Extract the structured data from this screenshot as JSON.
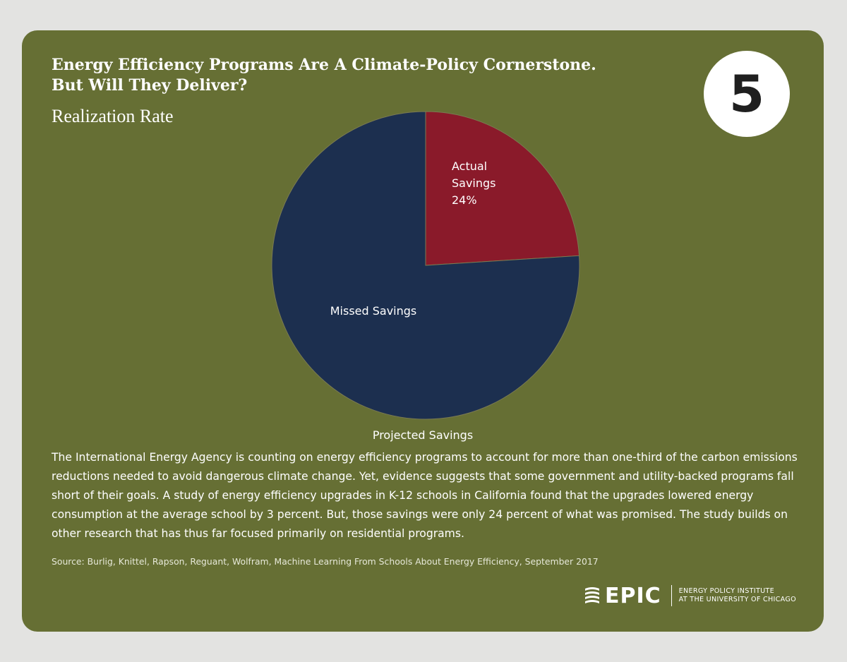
{
  "header": {
    "title_line1": "Energy Efficiency Programs Are A Climate-Policy Cornerstone.",
    "title_line2": "But Will They Deliver?",
    "number_badge": "5"
  },
  "chart_data": {
    "type": "pie",
    "title": "Realization Rate",
    "caption": "Projected Savings",
    "slices": [
      {
        "label_lines": [
          "Actual",
          "Savings",
          "24%"
        ],
        "value": 24,
        "color": "#8a1a2a"
      },
      {
        "label_lines": [
          "Missed Savings"
        ],
        "value": 76,
        "color": "#1c2f4f"
      }
    ],
    "start": "12 o'clock",
    "direction": "clockwise"
  },
  "body": {
    "paragraph": "The International Energy Agency is counting on energy efficiency programs to account for more than one-third of the carbon emissions reductions needed to avoid dangerous climate change. Yet, evidence suggests that some government and utility-backed programs fall short of their goals. A study of energy efficiency upgrades in K-12 schools in California found that the upgrades lowered energy consumption at the average school by 3 percent. But, those savings were only 24 percent of what was promised. The study builds on other research that has thus far focused primarily on residential programs.",
    "source": "Source: Burlig, Knittel, Rapson, Reguant, Wolfram, Machine Learning From Schools About Energy Efficiency, September 2017"
  },
  "logo": {
    "wordmark": "EPIC",
    "line1": "ENERGY POLICY INSTITUTE",
    "line2": "AT THE UNIVERSITY OF CHICAGO"
  }
}
